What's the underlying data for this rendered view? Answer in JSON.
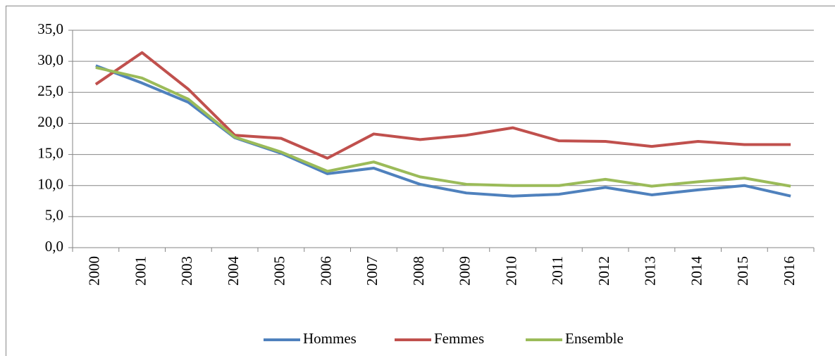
{
  "chart_data": {
    "type": "line",
    "categories": [
      "2000",
      "2001",
      "2003",
      "2004",
      "2005",
      "2006",
      "2007",
      "2008",
      "2009",
      "2010",
      "2011",
      "2012",
      "2013",
      "2014",
      "2015",
      "2016"
    ],
    "series": [
      {
        "name": "Hommes",
        "color": "#4f81bd",
        "values": [
          29.3,
          26.5,
          23.4,
          17.7,
          15.2,
          11.9,
          12.8,
          10.2,
          8.8,
          8.3,
          8.6,
          9.7,
          8.5,
          9.3,
          10.0,
          8.3
        ]
      },
      {
        "name": "Femmes",
        "color": "#c0504d",
        "values": [
          26.3,
          31.4,
          25.5,
          18.1,
          17.6,
          14.4,
          18.3,
          17.4,
          18.1,
          19.3,
          17.2,
          17.1,
          16.3,
          17.1,
          16.6,
          16.6
        ]
      },
      {
        "name": "Ensemble",
        "color": "#9bbb59",
        "values": [
          29.0,
          27.3,
          23.9,
          17.8,
          15.4,
          12.3,
          13.8,
          11.4,
          10.2,
          10.0,
          10.0,
          11.0,
          9.9,
          10.6,
          11.2,
          9.9
        ]
      }
    ],
    "ylim": [
      0,
      35
    ],
    "yticks": [
      {
        "value": 0,
        "label": "0,0"
      },
      {
        "value": 5,
        "label": "5,0"
      },
      {
        "value": 10,
        "label": "10,0"
      },
      {
        "value": 15,
        "label": "15,0"
      },
      {
        "value": 20,
        "label": "20,0"
      },
      {
        "value": 25,
        "label": "25,0"
      },
      {
        "value": 30,
        "label": "30,0"
      },
      {
        "value": 35,
        "label": "35,0"
      }
    ],
    "grid": true,
    "legend": "bottom"
  }
}
